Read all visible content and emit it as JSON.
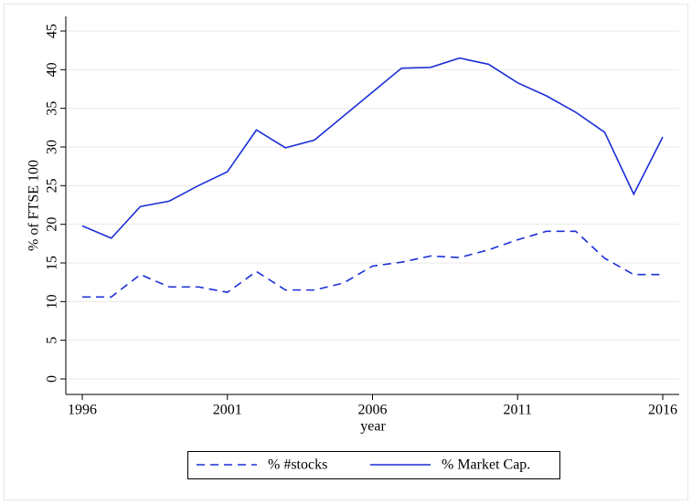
{
  "chart_data": {
    "type": "line",
    "y_label": "% of FTSE 100",
    "x_label": "year",
    "x": [
      1996,
      1997,
      1998,
      1999,
      2000,
      2001,
      2002,
      2003,
      2004,
      2005,
      2006,
      2007,
      2008,
      2009,
      2010,
      2011,
      2012,
      2013,
      2014,
      2015,
      2016
    ],
    "series": [
      {
        "name": "% #stocks",
        "color": "#1c2fd6",
        "dash": true,
        "values": [
          10.6,
          10.6,
          13.5,
          11.9,
          11.9,
          11.2,
          13.9,
          11.5,
          11.5,
          12.4,
          14.6,
          15.1,
          15.9,
          15.7,
          16.7,
          18.0,
          19.1,
          19.1,
          15.6,
          13.5,
          13.5
        ]
      },
      {
        "name": "% Market Cap.",
        "color": "#1c2fd6",
        "dash": false,
        "values": [
          19.8,
          18.2,
          22.3,
          23.0,
          25.0,
          26.8,
          32.2,
          29.9,
          30.9,
          34.0,
          37.1,
          40.2,
          40.3,
          41.5,
          40.7,
          38.3,
          36.6,
          34.5,
          31.9,
          23.9,
          31.3
        ]
      }
    ],
    "xlim": [
      1996,
      2016
    ],
    "xticks": [
      1996,
      2001,
      2006,
      2011,
      2016
    ],
    "ylim": [
      0,
      45
    ],
    "yticks": [
      0,
      5,
      10,
      15,
      20,
      25,
      30,
      35,
      40,
      45
    ],
    "grid": true,
    "legend": "bottom"
  }
}
